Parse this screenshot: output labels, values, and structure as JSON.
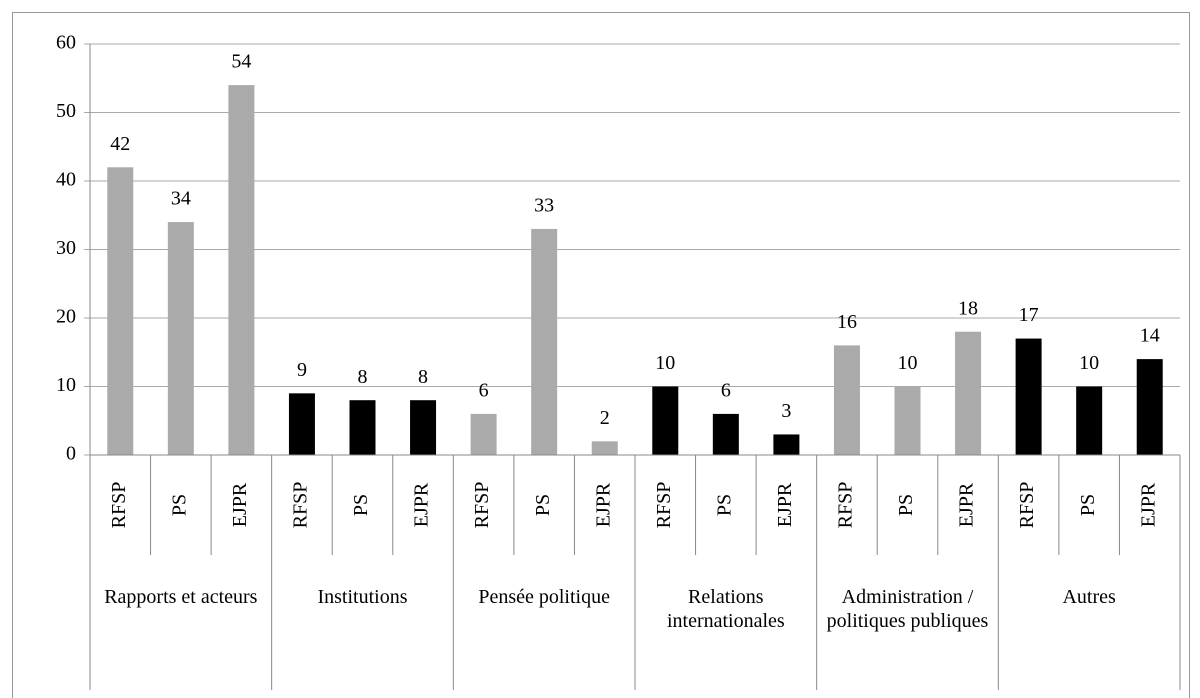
{
  "chart_data": {
    "type": "bar",
    "groups": [
      {
        "name": "Rapports et acteurs",
        "color": "#aaaaaa",
        "categories": [
          "RFSP",
          "PS",
          "EJPR"
        ],
        "values": [
          42,
          34,
          54
        ]
      },
      {
        "name": "Institutions",
        "color": "#000000",
        "categories": [
          "RFSP",
          "PS",
          "EJPR"
        ],
        "values": [
          9,
          8,
          8
        ]
      },
      {
        "name": "Pensée politique",
        "color": "#aaaaaa",
        "categories": [
          "RFSP",
          "PS",
          "EJPR"
        ],
        "values": [
          6,
          33,
          2
        ]
      },
      {
        "name": "Relations internationales",
        "color": "#000000",
        "categories": [
          "RFSP",
          "PS",
          "EJPR"
        ],
        "values": [
          10,
          6,
          3
        ]
      },
      {
        "name": "Administration / politiques publiques",
        "color": "#aaaaaa",
        "categories": [
          "RFSP",
          "PS",
          "EJPR"
        ],
        "values": [
          16,
          10,
          18
        ]
      },
      {
        "name": "Autres",
        "color": "#000000",
        "categories": [
          "RFSP",
          "PS",
          "EJPR"
        ],
        "values": [
          17,
          10,
          14
        ]
      }
    ],
    "ylim": [
      0,
      60
    ],
    "yticks": [
      0,
      10,
      20,
      30,
      40,
      50,
      60
    ],
    "grid": true
  }
}
